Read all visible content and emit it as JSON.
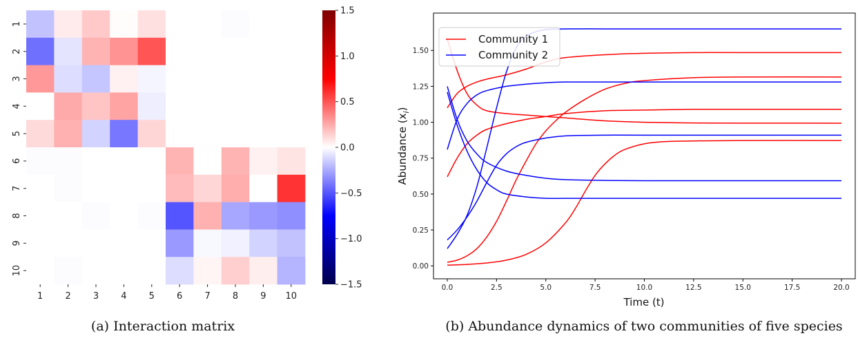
{
  "chart_data": [
    {
      "type": "heatmap",
      "caption": "(a) Interaction matrix",
      "row_labels": [
        "1",
        "2",
        "3",
        "4",
        "5",
        "6",
        "7",
        "8",
        "9",
        "10"
      ],
      "col_labels": [
        "1",
        "2",
        "3",
        "4",
        "5",
        "6",
        "7",
        "8",
        "9",
        "10"
      ],
      "values": [
        [
          -0.18,
          0.06,
          0.16,
          0.01,
          0.09,
          0.0,
          0.0,
          -0.01,
          0.0,
          0.0
        ],
        [
          -0.42,
          -0.08,
          0.22,
          0.32,
          0.5,
          0.0,
          0.0,
          0.0,
          0.0,
          0.0
        ],
        [
          0.3,
          -0.1,
          -0.17,
          0.04,
          -0.03,
          0.0,
          0.0,
          0.0,
          0.0,
          0.0
        ],
        [
          0.0,
          0.25,
          0.17,
          0.27,
          -0.05,
          0.0,
          0.0,
          0.0,
          0.0,
          0.0
        ],
        [
          0.11,
          0.23,
          -0.13,
          -0.4,
          0.12,
          0.0,
          0.0,
          0.0,
          0.0,
          0.0
        ],
        [
          -0.01,
          -0.01,
          0.0,
          0.0,
          0.0,
          0.22,
          0.0,
          0.22,
          0.04,
          0.08
        ],
        [
          0.0,
          -0.01,
          0.0,
          0.0,
          0.0,
          0.2,
          0.12,
          0.24,
          0.0,
          0.6
        ],
        [
          0.0,
          0.0,
          -0.01,
          0.0,
          -0.01,
          -0.5,
          0.23,
          -0.26,
          -0.3,
          -0.33
        ],
        [
          0.0,
          0.0,
          0.0,
          0.0,
          0.0,
          -0.3,
          -0.02,
          -0.04,
          -0.13,
          -0.18
        ],
        [
          0.0,
          -0.01,
          0.0,
          0.0,
          0.0,
          -0.1,
          0.03,
          0.14,
          0.05,
          -0.22
        ]
      ],
      "colorbar": {
        "colormap": "seismic",
        "range": [
          -1.5,
          1.5
        ],
        "ticks": [
          1.5,
          1.0,
          0.5,
          0.0,
          -0.5,
          -1.0,
          -1.5
        ],
        "tick_labels": [
          "1.5",
          "1.0",
          "0.5",
          "0.0",
          "−0.5",
          "−1.0",
          "−1.5"
        ]
      }
    },
    {
      "type": "line",
      "caption": "(b) Abundance dynamics of two communities of five species",
      "xlabel": "Time (t)",
      "ylabel": "Abundance (x",
      "ylabel_sub": "i",
      "ylabel_close": ")",
      "xlim": [
        -0.7,
        20.7
      ],
      "ylim": [
        -0.09,
        1.76
      ],
      "xticks": [
        0.0,
        2.5,
        5.0,
        7.5,
        10.0,
        12.5,
        15.0,
        17.5,
        20.0
      ],
      "xtick_labels": [
        "0.0",
        "2.5",
        "5.0",
        "7.5",
        "10.0",
        "12.5",
        "15.0",
        "17.5",
        "20.0"
      ],
      "yticks": [
        0.0,
        0.25,
        0.5,
        0.75,
        1.0,
        1.25,
        1.5
      ],
      "ytick_labels": [
        "0.00",
        "0.25",
        "0.50",
        "0.75",
        "1.00",
        "1.25",
        "1.50"
      ],
      "legend": {
        "position": "top-left",
        "entries": [
          {
            "label": "Community 1",
            "color": "#ff0000"
          },
          {
            "label": "Community 2",
            "color": "#0000ff"
          }
        ]
      },
      "series": [
        {
          "group": "Community 1",
          "color": "#ff0000",
          "x": [
            0,
            0.5,
            1,
            1.5,
            2,
            3,
            4,
            5,
            6,
            8,
            10,
            12.5,
            15,
            20
          ],
          "y": [
            1.58,
            1.36,
            1.2,
            1.12,
            1.08,
            1.06,
            1.05,
            1.04,
            1.03,
            1.01,
            1.0,
            0.995,
            0.994,
            0.993
          ]
        },
        {
          "group": "Community 1",
          "color": "#ff0000",
          "x": [
            0,
            0.5,
            1,
            1.5,
            2,
            3,
            4,
            5,
            6,
            8,
            10,
            12.5,
            15,
            20
          ],
          "y": [
            1.1,
            1.2,
            1.25,
            1.28,
            1.3,
            1.33,
            1.37,
            1.42,
            1.45,
            1.47,
            1.48,
            1.485,
            1.485,
            1.485
          ]
        },
        {
          "group": "Community 1",
          "color": "#ff0000",
          "x": [
            0,
            0.5,
            1,
            1.5,
            2,
            3,
            4,
            5,
            6,
            8,
            10,
            12.5,
            15,
            20
          ],
          "y": [
            0.62,
            0.75,
            0.85,
            0.91,
            0.95,
            0.99,
            1.02,
            1.04,
            1.06,
            1.08,
            1.085,
            1.09,
            1.09,
            1.09
          ]
        },
        {
          "group": "Community 1",
          "color": "#ff0000",
          "x": [
            0,
            0.5,
            1,
            1.5,
            2,
            2.5,
            3,
            3.5,
            4,
            4.5,
            5,
            5.5,
            6,
            7,
            8,
            9,
            10,
            12.5,
            15,
            20
          ],
          "y": [
            0.025,
            0.04,
            0.07,
            0.12,
            0.2,
            0.31,
            0.45,
            0.6,
            0.73,
            0.85,
            0.94,
            1.01,
            1.07,
            1.16,
            1.23,
            1.27,
            1.29,
            1.31,
            1.315,
            1.315
          ]
        },
        {
          "group": "Community 1",
          "color": "#ff0000",
          "x": [
            0,
            1,
            2,
            3,
            4,
            5,
            6,
            6.5,
            7,
            7.5,
            8,
            8.5,
            9,
            10,
            11,
            12.5,
            15,
            20
          ],
          "y": [
            0.005,
            0.01,
            0.02,
            0.04,
            0.08,
            0.16,
            0.3,
            0.4,
            0.52,
            0.63,
            0.71,
            0.77,
            0.81,
            0.85,
            0.865,
            0.87,
            0.873,
            0.873
          ]
        },
        {
          "group": "Community 2",
          "color": "#0000ff",
          "x": [
            0,
            0.5,
            1,
            1.5,
            2,
            2.5,
            3,
            3.5,
            4,
            4.5,
            5,
            6,
            8,
            10,
            15,
            20
          ],
          "y": [
            0.12,
            0.22,
            0.35,
            0.55,
            0.82,
            1.1,
            1.35,
            1.52,
            1.6,
            1.63,
            1.645,
            1.65,
            1.65,
            1.65,
            1.65,
            1.65
          ]
        },
        {
          "group": "Community 2",
          "color": "#0000ff",
          "x": [
            0,
            0.5,
            1,
            1.5,
            2,
            3,
            4,
            5,
            6,
            8,
            10,
            15,
            20
          ],
          "y": [
            0.81,
            1.02,
            1.13,
            1.19,
            1.22,
            1.25,
            1.265,
            1.275,
            1.28,
            1.28,
            1.28,
            1.28,
            1.28
          ]
        },
        {
          "group": "Community 2",
          "color": "#0000ff",
          "x": [
            0,
            0.5,
            1,
            1.5,
            2,
            2.5,
            3,
            3.5,
            4,
            5,
            6,
            8,
            10,
            15,
            20
          ],
          "y": [
            0.18,
            0.25,
            0.34,
            0.45,
            0.58,
            0.7,
            0.78,
            0.83,
            0.86,
            0.89,
            0.905,
            0.91,
            0.91,
            0.91,
            0.91
          ]
        },
        {
          "group": "Community 2",
          "color": "#0000ff",
          "x": [
            0,
            0.5,
            1,
            1.5,
            2,
            3,
            4,
            5,
            6,
            8,
            10,
            15,
            20
          ],
          "y": [
            1.25,
            1.02,
            0.87,
            0.78,
            0.72,
            0.66,
            0.63,
            0.61,
            0.6,
            0.595,
            0.593,
            0.593,
            0.593
          ]
        },
        {
          "group": "Community 2",
          "color": "#0000ff",
          "x": [
            0,
            0.5,
            1,
            1.5,
            2,
            2.5,
            3,
            4,
            5,
            6,
            8,
            10,
            15,
            20
          ],
          "y": [
            1.21,
            0.98,
            0.8,
            0.67,
            0.58,
            0.53,
            0.5,
            0.48,
            0.47,
            0.47,
            0.47,
            0.47,
            0.47,
            0.47
          ]
        }
      ]
    }
  ]
}
